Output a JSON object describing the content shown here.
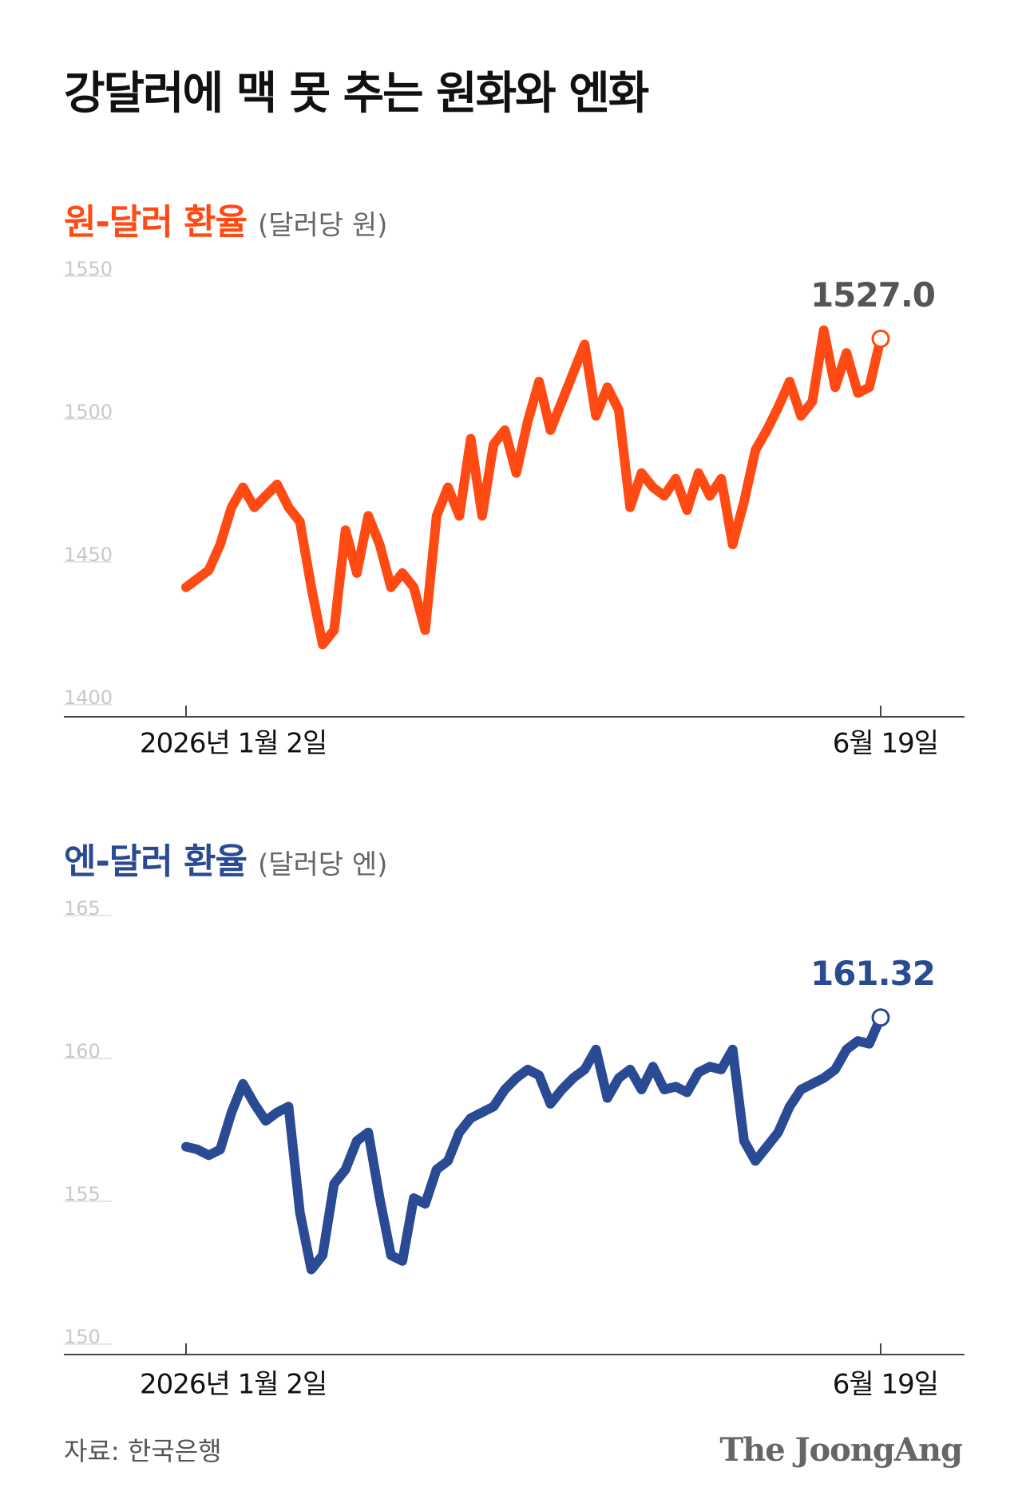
{
  "title": "강달러에 맥 못 추는 원화와 엔화",
  "source": "자료: 한국은행",
  "brand": "The JoongAng",
  "chart_data": [
    {
      "type": "line",
      "title": "원-달러 환율",
      "subtitle": "(달러당 원)",
      "color": "#ff4a14",
      "categories": [
        "2026년 1월 2일",
        null,
        null,
        null,
        null,
        null,
        null,
        null,
        null,
        null,
        null,
        null,
        null,
        null,
        null,
        null,
        null,
        null,
        null,
        null,
        null,
        null,
        null,
        null,
        null,
        null,
        null,
        null,
        null,
        null,
        null,
        null,
        null,
        null,
        null,
        null,
        null,
        null,
        null,
        null,
        null,
        null,
        null,
        null,
        null,
        null,
        null,
        null,
        null,
        null,
        null,
        null,
        null,
        null,
        null,
        null,
        null,
        null,
        null,
        null,
        null,
        "6월 19일"
      ],
      "values": [
        1440,
        1443,
        1446,
        1455,
        1468,
        1475,
        1468,
        1472,
        1476,
        1468,
        1463,
        1440,
        1420,
        1425,
        1460,
        1445,
        1465,
        1455,
        1440,
        1445,
        1440,
        1425,
        1465,
        1475,
        1465,
        1492,
        1465,
        1490,
        1495,
        1480,
        1498,
        1512,
        1495,
        1505,
        1515,
        1525,
        1500,
        1510,
        1502,
        1468,
        1480,
        1475,
        1472,
        1478,
        1467,
        1480,
        1472,
        1478,
        1455,
        1470,
        1488,
        1495,
        1503,
        1512,
        1500,
        1505,
        1530,
        1510,
        1522,
        1508,
        1510,
        1527
      ],
      "value_labels": [
        null,
        null,
        null,
        null,
        null,
        null,
        null,
        null,
        null,
        null,
        null,
        null,
        null,
        null,
        null,
        null,
        null,
        null,
        null,
        null,
        null,
        null,
        null,
        null,
        null,
        null,
        null,
        null,
        null,
        null,
        null,
        null,
        null,
        null,
        null,
        null,
        null,
        null,
        null,
        null,
        null,
        null,
        null,
        null,
        null,
        null,
        null,
        null,
        null,
        null,
        null,
        null,
        null,
        null,
        null,
        null,
        null,
        null,
        null,
        null,
        null,
        "1527.0"
      ],
      "ylim": [
        1400,
        1550
      ],
      "yticks": [
        1400,
        1450,
        1500,
        1550
      ]
    },
    {
      "type": "line",
      "title": "엔-달러 환율",
      "subtitle": "(달러당 엔)",
      "color": "#2a4a94",
      "categories": [
        "2026년 1월 2일",
        null,
        null,
        null,
        null,
        null,
        null,
        null,
        null,
        null,
        null,
        null,
        null,
        null,
        null,
        null,
        null,
        null,
        null,
        null,
        null,
        null,
        null,
        null,
        null,
        null,
        null,
        null,
        null,
        null,
        null,
        null,
        null,
        null,
        null,
        null,
        null,
        null,
        null,
        null,
        null,
        null,
        null,
        null,
        null,
        null,
        null,
        null,
        null,
        null,
        null,
        null,
        null,
        null,
        null,
        null,
        null,
        null,
        null,
        null,
        null,
        "6월 19일"
      ],
      "values": [
        156.8,
        156.7,
        156.5,
        156.7,
        158,
        159,
        158.3,
        157.7,
        158,
        158.2,
        154.5,
        152.5,
        153,
        155.5,
        156,
        157,
        157.3,
        155,
        153,
        152.8,
        155,
        154.8,
        156,
        156.3,
        157.3,
        157.8,
        158,
        158.2,
        158.8,
        159.2,
        159.5,
        159.3,
        158.3,
        158.8,
        159.2,
        159.5,
        160.2,
        158.5,
        159.2,
        159.5,
        158.8,
        159.6,
        158.8,
        158.9,
        158.7,
        159.4,
        159.6,
        159.5,
        160.2,
        157,
        156.3,
        156.8,
        157.3,
        158.2,
        158.8,
        159,
        159.2,
        159.5,
        160.2,
        160.5,
        160.4,
        161.32
      ],
      "ylim": [
        150,
        165
      ],
      "yticks": [
        150,
        155,
        160,
        165
      ]
    }
  ]
}
